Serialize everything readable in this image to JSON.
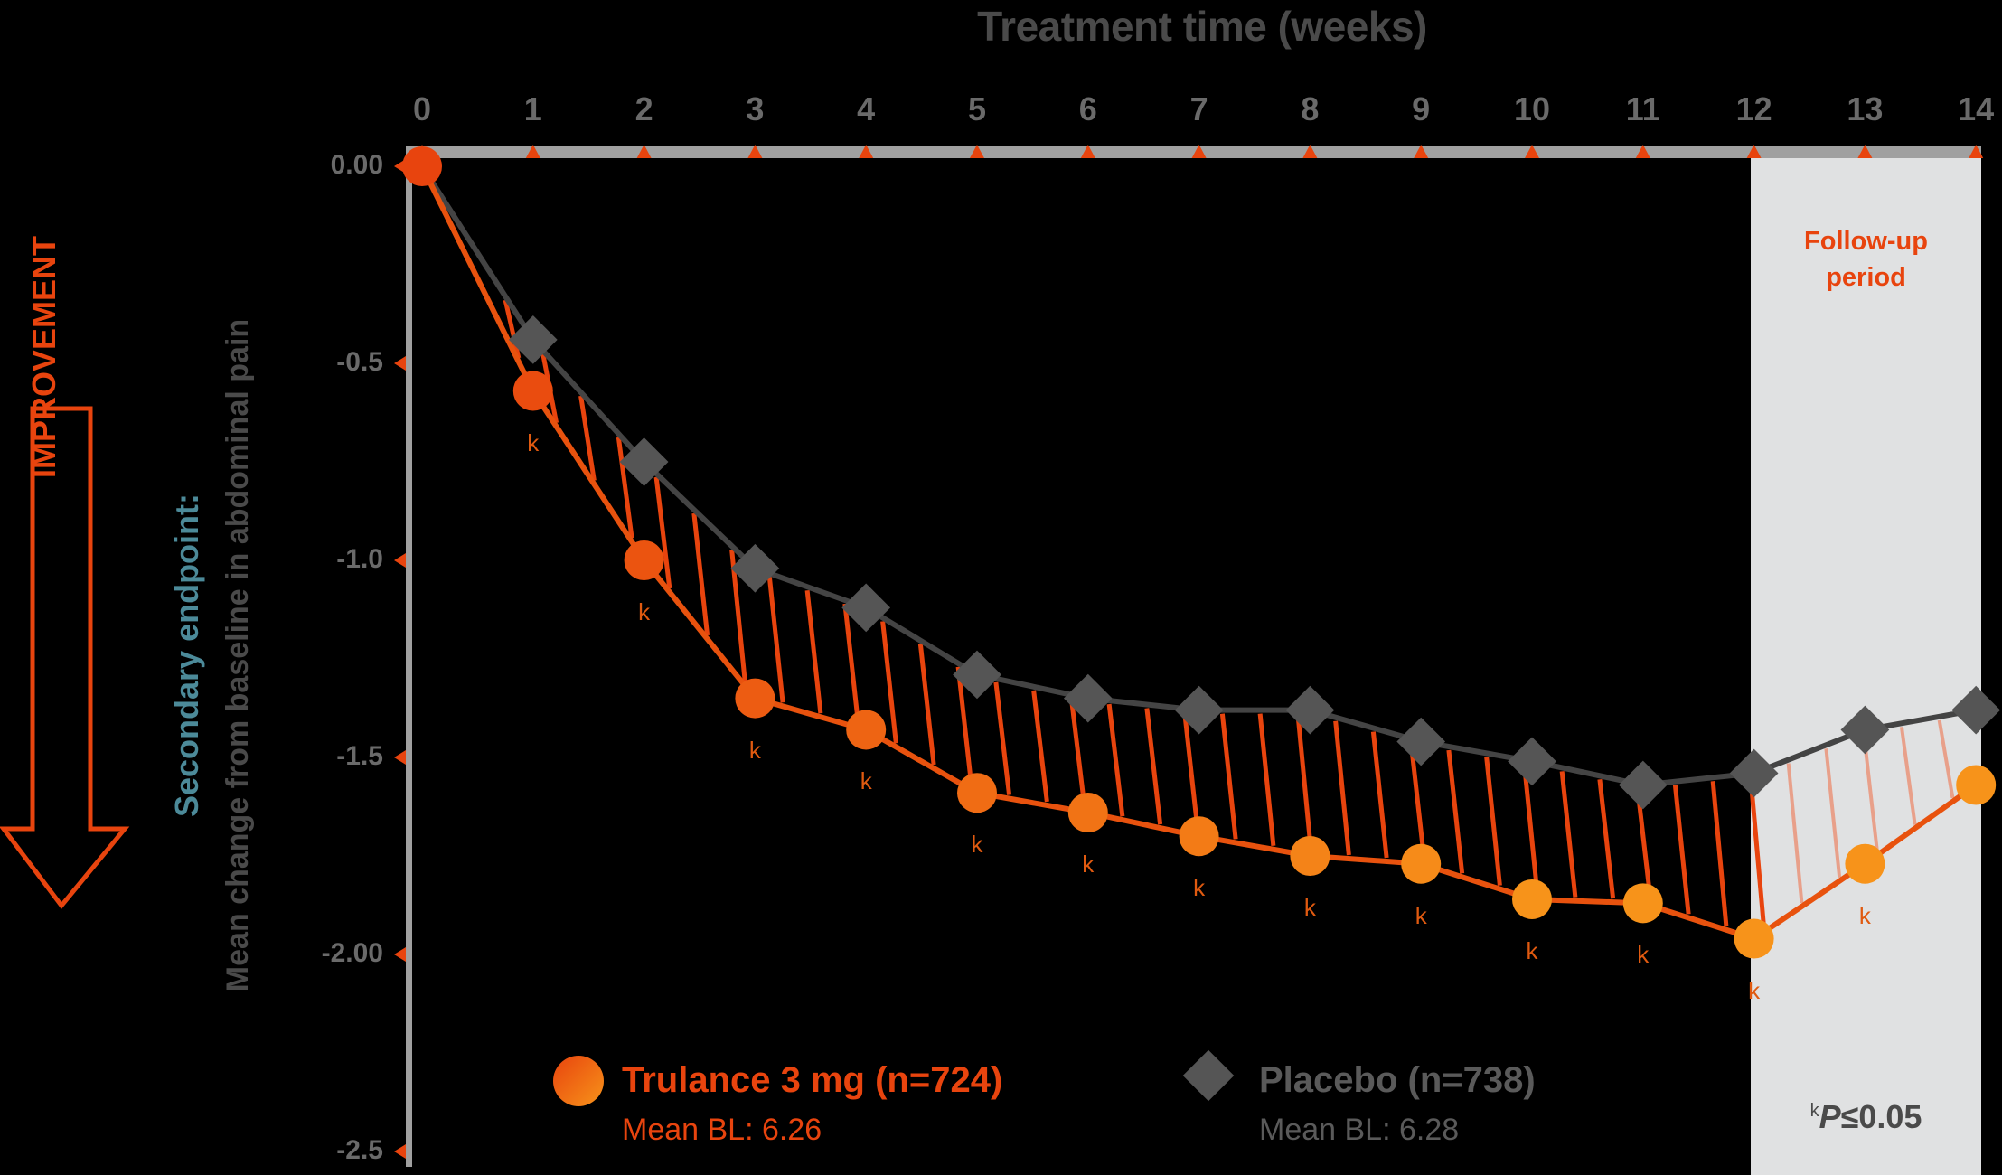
{
  "chart_data": {
    "type": "line",
    "title": "Treatment time (weeks)",
    "xlabel": "Treatment time (weeks)",
    "ylabel": "Secondary endpoint: Mean change from baseline in abdominal pain",
    "x": [
      0,
      1,
      2,
      3,
      4,
      5,
      6,
      7,
      8,
      9,
      10,
      11,
      12,
      13,
      14
    ],
    "x_tick_labels": [
      "0",
      "1",
      "2",
      "3",
      "4",
      "5",
      "6",
      "7",
      "8",
      "9",
      "10",
      "11",
      "12",
      "13",
      "14"
    ],
    "y_tick_labels": [
      "0.00",
      "-0.5",
      "-1.0",
      "-1.5",
      "-2.00",
      "-2.5"
    ],
    "y_ticks": [
      0.0,
      -0.5,
      -1.0,
      -1.5,
      -2.0,
      -2.5
    ],
    "ylim": [
      -2.5,
      0.0
    ],
    "xlim": [
      0,
      14
    ],
    "x_axis_position": "top",
    "grid": false,
    "series": [
      {
        "name": "Trulance 3 mg (n=724)",
        "subtitle": "Mean BL: 6.26",
        "marker": "circle",
        "color": "#e8440e",
        "color_end": "#f7931a",
        "values": [
          0.0,
          -0.57,
          -1.0,
          -1.35,
          -1.43,
          -1.59,
          -1.64,
          -1.7,
          -1.75,
          -1.77,
          -1.86,
          -1.87,
          -1.96,
          -1.77,
          -1.57
        ],
        "significant_weeks": [
          1,
          2,
          3,
          4,
          5,
          6,
          7,
          8,
          9,
          10,
          11,
          12,
          13
        ]
      },
      {
        "name": "Placebo (n=738)",
        "subtitle": "Mean BL: 6.28",
        "marker": "diamond",
        "color": "#555555",
        "values": [
          0.0,
          -0.44,
          -0.75,
          -1.02,
          -1.12,
          -1.29,
          -1.35,
          -1.38,
          -1.38,
          -1.46,
          -1.51,
          -1.57,
          -1.54,
          -1.43,
          -1.38
        ]
      }
    ],
    "annotations": {
      "follow_up_period": {
        "label": "Follow-up period",
        "x_start": 12,
        "x_end": 14
      },
      "significance_marker": "k",
      "significance_footnote": "P≤0.05",
      "direction_arrow": "IMPROVEMENT"
    },
    "legend_position": "bottom"
  },
  "labels": {
    "x_title": "Treatment time (weeks)",
    "y_title_line1": "Secondary endpoint:",
    "y_title_line2": "Mean change from baseline in abdominal pain",
    "improvement": "IMPROVEMENT",
    "follow_up_line1": "Follow-up",
    "follow_up_line2": "period",
    "p_sup": "k",
    "p_letter": "P",
    "p_rest": "≤0.05",
    "sig_marker": "k"
  },
  "legend": {
    "trulance": {
      "name": "Trulance 3 mg (n=724)",
      "baseline": "Mean BL: 6.26"
    },
    "placebo": {
      "name": "Placebo (n=738)",
      "baseline": "Mean BL: 6.28"
    }
  },
  "colors": {
    "trulance_start": "#e8440e",
    "trulance_end": "#f7931a",
    "placebo": "#555555",
    "axis": "#a0a0a0",
    "follow_up_bg": "#e0e1e2",
    "teal_title": "#4c8a99"
  }
}
